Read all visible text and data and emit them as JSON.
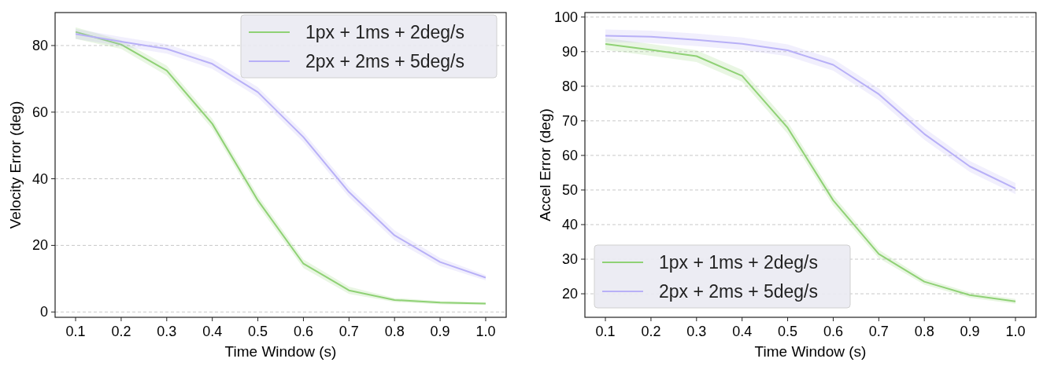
{
  "chart_data": [
    {
      "type": "line",
      "xlabel": "Time Window (s)",
      "ylabel": "Velocity Error (deg)",
      "x": [
        0.1,
        0.2,
        0.3,
        0.4,
        0.5,
        0.6,
        0.7,
        0.8,
        0.9,
        1.0
      ],
      "xlim": [
        0.055,
        1.045
      ],
      "xticks": [
        {
          "value": 0.1,
          "label": "0.1"
        },
        {
          "value": 0.2,
          "label": "0.2"
        },
        {
          "value": 0.3,
          "label": "0.3"
        },
        {
          "value": 0.4,
          "label": "0.4"
        },
        {
          "value": 0.5,
          "label": "0.5"
        },
        {
          "value": 0.6,
          "label": "0.6"
        },
        {
          "value": 0.7,
          "label": "0.7"
        },
        {
          "value": 0.8,
          "label": "0.8"
        },
        {
          "value": 0.9,
          "label": "0.9"
        },
        {
          "value": 1.0,
          "label": "1.0"
        }
      ],
      "ylim": [
        -1.6,
        89.9
      ],
      "yticks": [
        0,
        20,
        40,
        60,
        80
      ],
      "grid": "y",
      "legend": "top right",
      "series": [
        {
          "name": "1px + 1ms + 2deg/s",
          "color": "#8fd175",
          "values": [
            84.1,
            80.3,
            72.5,
            56.5,
            33.5,
            14.5,
            6.5,
            3.6,
            2.8,
            2.5
          ],
          "lower": [
            82,
            79,
            71,
            55,
            32,
            13.2,
            5.4,
            3,
            2.3,
            2.1
          ],
          "upper": [
            85.5,
            81.6,
            74,
            58,
            35,
            15.8,
            7.6,
            4.2,
            3.3,
            2.9
          ]
        },
        {
          "name": "2px + 2ms + 5deg/s",
          "color": "#b8b0f7",
          "values": [
            83.5,
            81.2,
            79,
            74.5,
            66,
            52.5,
            36,
            23,
            15,
            10.3
          ],
          "lower": [
            82,
            79.8,
            77.6,
            73,
            64.5,
            51,
            34.5,
            21.5,
            13.8,
            9.5
          ],
          "upper": [
            85,
            82.6,
            80.4,
            76,
            67.5,
            54,
            37.5,
            24.5,
            16.2,
            11.1
          ]
        }
      ]
    },
    {
      "type": "line",
      "xlabel": "Time Window (s)",
      "ylabel": "Accel Error (deg)",
      "x": [
        0.1,
        0.2,
        0.3,
        0.4,
        0.5,
        0.6,
        0.7,
        0.8,
        0.9,
        1.0
      ],
      "xlim": [
        0.055,
        1.045
      ],
      "xticks": [
        {
          "value": 0.1,
          "label": "0.1"
        },
        {
          "value": 0.2,
          "label": "0.2"
        },
        {
          "value": 0.3,
          "label": "0.3"
        },
        {
          "value": 0.4,
          "label": "0.4"
        },
        {
          "value": 0.5,
          "label": "0.5"
        },
        {
          "value": 0.6,
          "label": "0.6"
        },
        {
          "value": 0.7,
          "label": "0.7"
        },
        {
          "value": 0.8,
          "label": "0.8"
        },
        {
          "value": 0.9,
          "label": "0.9"
        },
        {
          "value": 1.0,
          "label": "1.0"
        }
      ],
      "ylim": [
        13.2,
        101.3
      ],
      "yticks": [
        20,
        30,
        40,
        50,
        60,
        70,
        80,
        90,
        100
      ],
      "grid": "y",
      "legend": "bottom left",
      "series": [
        {
          "name": "1px + 1ms + 2deg/s",
          "color": "#8fd175",
          "values": [
            92.2,
            90.5,
            88.7,
            83,
            68,
            47,
            31.5,
            23.5,
            19.6,
            17.8
          ],
          "lower": [
            90.5,
            88.8,
            87,
            81.3,
            66.3,
            45.5,
            30.3,
            22.6,
            18.8,
            17.1
          ],
          "upper": [
            93.9,
            92.2,
            90.4,
            84.7,
            69.7,
            48.5,
            32.7,
            24.4,
            20.4,
            18.5
          ]
        },
        {
          "name": "2px + 2ms + 5deg/s",
          "color": "#b8b0f7",
          "values": [
            94.6,
            94.3,
            93.4,
            92.3,
            90.4,
            86.2,
            77.7,
            66.2,
            56.8,
            50.4
          ],
          "lower": [
            92.8,
            92.5,
            91.6,
            90.5,
            88.7,
            84.5,
            76,
            64.5,
            55.2,
            48.8
          ],
          "upper": [
            96.4,
            96.1,
            95.2,
            94.1,
            92.1,
            87.9,
            79.4,
            67.9,
            58.4,
            52
          ]
        }
      ]
    }
  ]
}
